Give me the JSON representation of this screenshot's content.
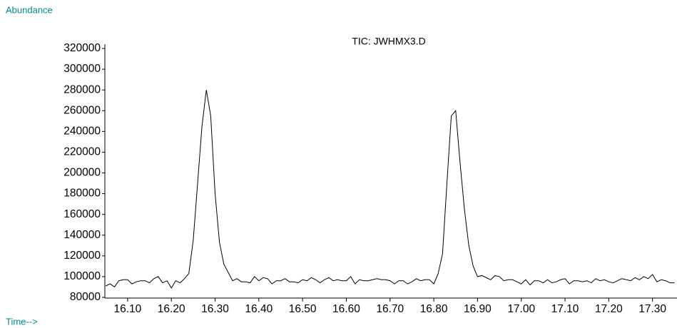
{
  "chart_data": {
    "type": "line",
    "title": "TIC: JWHMX3.D",
    "y_label": "Abundance",
    "x_label": "Time-->",
    "x": [
      16.05,
      16.06,
      16.07,
      16.08,
      16.09,
      16.1,
      16.11,
      16.12,
      16.13,
      16.14,
      16.15,
      16.16,
      16.17,
      16.18,
      16.19,
      16.2,
      16.21,
      16.22,
      16.23,
      16.24,
      16.25,
      16.26,
      16.27,
      16.28,
      16.29,
      16.3,
      16.31,
      16.32,
      16.33,
      16.34,
      16.35,
      16.36,
      16.37,
      16.38,
      16.39,
      16.4,
      16.41,
      16.42,
      16.43,
      16.44,
      16.45,
      16.46,
      16.47,
      16.48,
      16.49,
      16.5,
      16.51,
      16.52,
      16.53,
      16.54,
      16.55,
      16.56,
      16.57,
      16.58,
      16.59,
      16.6,
      16.61,
      16.62,
      16.63,
      16.64,
      16.65,
      16.66,
      16.67,
      16.68,
      16.69,
      16.7,
      16.71,
      16.72,
      16.73,
      16.74,
      16.75,
      16.76,
      16.77,
      16.78,
      16.79,
      16.8,
      16.81,
      16.82,
      16.83,
      16.84,
      16.85,
      16.86,
      16.87,
      16.88,
      16.89,
      16.9,
      16.91,
      16.92,
      16.93,
      16.94,
      16.95,
      16.96,
      16.97,
      16.98,
      16.99,
      17.0,
      17.01,
      17.02,
      17.03,
      17.04,
      17.05,
      17.06,
      17.07,
      17.08,
      17.09,
      17.1,
      17.11,
      17.12,
      17.13,
      17.14,
      17.15,
      17.16,
      17.17,
      17.18,
      17.19,
      17.2,
      17.21,
      17.22,
      17.23,
      17.24,
      17.25,
      17.26,
      17.27,
      17.28,
      17.29,
      17.3,
      17.31,
      17.32,
      17.33,
      17.34,
      17.35
    ],
    "series": [
      {
        "name": "TIC",
        "color": "#000000",
        "values": [
          91000,
          93000,
          90000,
          96000,
          97000,
          97000,
          93000,
          95000,
          96000,
          96000,
          94000,
          98000,
          100000,
          94000,
          96000,
          89000,
          96000,
          94000,
          98000,
          103000,
          135000,
          190000,
          245000,
          280000,
          255000,
          180000,
          133000,
          112000,
          104000,
          96000,
          98000,
          95000,
          95000,
          94000,
          100000,
          96000,
          99000,
          98000,
          93000,
          96000,
          96000,
          98000,
          95000,
          95000,
          94000,
          97000,
          96000,
          99000,
          97000,
          94000,
          97000,
          99000,
          96000,
          97000,
          96000,
          96000,
          100000,
          93000,
          97000,
          96000,
          96000,
          97000,
          98000,
          97000,
          97000,
          96000,
          93000,
          96000,
          96000,
          93000,
          95000,
          98000,
          96000,
          97000,
          97000,
          93000,
          103000,
          122000,
          190000,
          255000,
          260000,
          210000,
          165000,
          130000,
          110000,
          100000,
          101000,
          99000,
          97000,
          101000,
          100000,
          96000,
          97000,
          97000,
          95000,
          93000,
          97000,
          92000,
          96000,
          96000,
          94000,
          97000,
          94000,
          95000,
          97000,
          98000,
          93000,
          96000,
          96000,
          95000,
          96000,
          94000,
          98000,
          96000,
          97000,
          95000,
          94000,
          96000,
          98000,
          97000,
          96000,
          99000,
          97000,
          100000,
          98000,
          102000,
          95000,
          97000,
          96000,
          94000,
          94000
        ]
      }
    ],
    "xlim": [
      16.048,
      17.356
    ],
    "xticks": [
      {
        "value": 16.1,
        "label": "16.10"
      },
      {
        "value": 16.2,
        "label": "16.20"
      },
      {
        "value": 16.3,
        "label": "16.30"
      },
      {
        "value": 16.4,
        "label": "16.40"
      },
      {
        "value": 16.5,
        "label": "16.50"
      },
      {
        "value": 16.6,
        "label": "16.60"
      },
      {
        "value": 16.7,
        "label": "16.70"
      },
      {
        "value": 16.8,
        "label": "16.80"
      },
      {
        "value": 16.9,
        "label": "16.90"
      },
      {
        "value": 17.0,
        "label": "17.00"
      },
      {
        "value": 17.1,
        "label": "17.10"
      },
      {
        "value": 17.2,
        "label": "17.20"
      },
      {
        "value": 17.3,
        "label": "17.30"
      }
    ],
    "ylim": [
      80000,
      320000
    ],
    "yticks": [
      80000,
      100000,
      120000,
      140000,
      160000,
      180000,
      200000,
      220000,
      240000,
      260000,
      280000,
      300000,
      320000
    ],
    "label_color": "#008b8b"
  }
}
